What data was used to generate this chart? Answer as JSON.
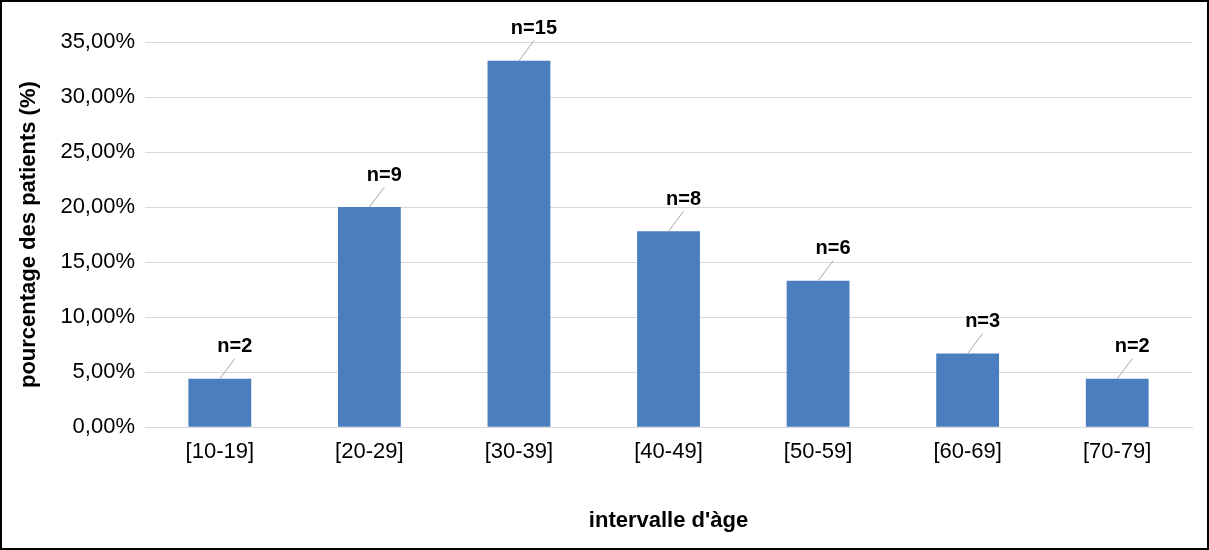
{
  "chart_data": {
    "type": "bar",
    "xlabel": "intervalle d'àge",
    "ylabel": "pourcentage des patients (%)",
    "categories": [
      "[10-19]",
      "[20-29]",
      "[30-39]",
      "[40-49]",
      "[50-59]",
      "[60-69]",
      "[70-79]"
    ],
    "values": [
      4.4,
      20,
      33.3,
      17.8,
      13.3,
      6.7,
      4.4
    ],
    "annotations": [
      {
        "text": "n=2",
        "x": "[10-19]",
        "y": 4.4
      },
      {
        "text": "n=9",
        "x": "[20-29]",
        "y": 20
      },
      {
        "text": "n=15",
        "x": "[30-39]",
        "y": 33.3
      },
      {
        "text": "n=8",
        "x": "[40-49]",
        "y": 17.8
      },
      {
        "text": "n=6",
        "x": "[50-59]",
        "y": 13.3
      },
      {
        "text": "n=3",
        "x": "[60-69]",
        "y": 6.7
      },
      {
        "text": "n=2",
        "x": "[70-79]",
        "y": 4.4
      }
    ],
    "color": "#4a7ebf",
    "ylim": [
      0,
      35
    ],
    "yticks": [
      {
        "value": 0,
        "label": "0,00%"
      },
      {
        "value": 5,
        "label": "5,00%"
      },
      {
        "value": 10,
        "label": "10,00%"
      },
      {
        "value": 15,
        "label": "15,00%"
      },
      {
        "value": 20,
        "label": "20,00%"
      },
      {
        "value": 25,
        "label": "25,00%"
      },
      {
        "value": 30,
        "label": "30,00%"
      },
      {
        "value": 35,
        "label": "35,00%"
      }
    ],
    "grid": "y",
    "legend": false
  }
}
